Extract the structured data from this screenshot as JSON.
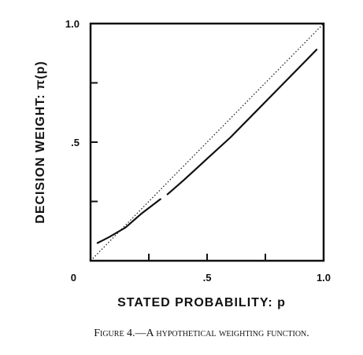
{
  "chart_data": {
    "type": "line",
    "xlabel": "STATED PROBABILITY: p",
    "ylabel": "DECISION WEIGHT: π(p)",
    "xlim": [
      0,
      1
    ],
    "ylim": [
      0,
      1
    ],
    "x_ticks": [
      {
        "value": 0,
        "label": "0"
      },
      {
        "value": 0.5,
        "label": ".5"
      },
      {
        "value": 1,
        "label": "1.0"
      }
    ],
    "x_minor_ticks": [
      0.25,
      0.75
    ],
    "y_ticks": [
      {
        "value": 0.5,
        "label": ".5"
      },
      {
        "value": 1,
        "label": "1.0"
      }
    ],
    "y_minor_ticks": [
      0.25,
      0.75
    ],
    "grid": false,
    "series": [
      {
        "style": "solid",
        "segments": [
          {
            "x": [
              0.03,
              0.08,
              0.15,
              0.22,
              0.3
            ],
            "y": [
              0.075,
              0.1,
              0.14,
              0.2,
              0.26
            ]
          },
          {
            "x": [
              0.33,
              0.4,
              0.5,
              0.6,
              0.7,
              0.8,
              0.9,
              0.97
            ],
            "y": [
              0.28,
              0.34,
              0.43,
              0.52,
              0.62,
              0.72,
              0.82,
              0.89
            ]
          }
        ]
      },
      {
        "style": "dotted",
        "segments": [
          {
            "x": [
              0,
              1
            ],
            "y": [
              0,
              1
            ]
          }
        ]
      }
    ]
  },
  "caption": "Figure 4.—A hypothetical weighting function."
}
